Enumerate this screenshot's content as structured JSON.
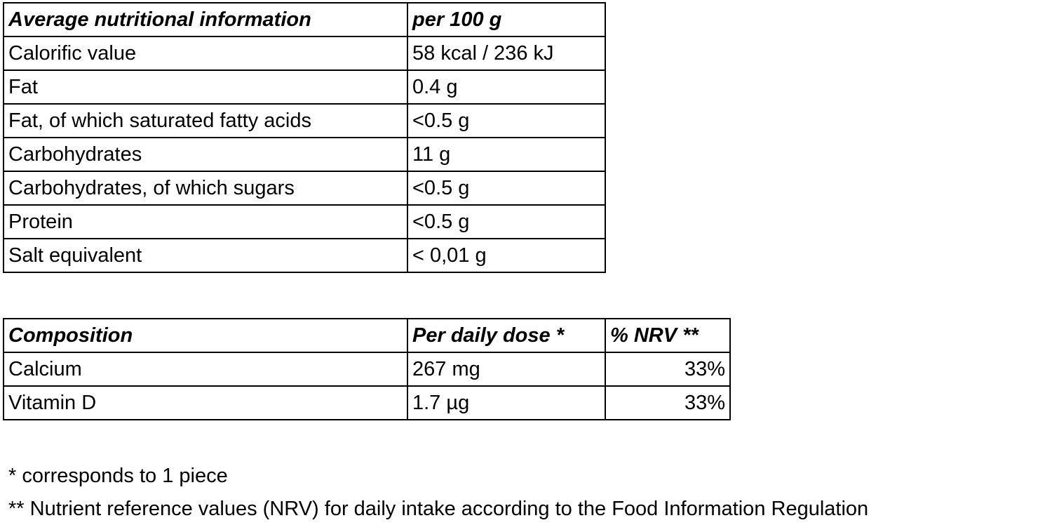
{
  "nutrition_table": {
    "header": [
      "Average nutritional information",
      "per 100 g"
    ],
    "rows": [
      [
        "Calorific value",
        "58 kcal / 236 kJ"
      ],
      [
        "Fat",
        "0.4 g"
      ],
      [
        "Fat, of which saturated fatty acids",
        "<0.5 g"
      ],
      [
        "Carbohydrates",
        "11 g"
      ],
      [
        "Carbohydrates, of which sugars",
        "<0.5 g"
      ],
      [
        "Protein",
        "<0.5 g"
      ],
      [
        "Salt equivalent",
        "< 0,01 g"
      ]
    ]
  },
  "composition_table": {
    "header": [
      "Composition",
      "Per daily dose *",
      "% NRV **"
    ],
    "rows": [
      [
        "Calcium",
        "267 mg",
        "33%"
      ],
      [
        "Vitamin D",
        "1.7 µg",
        "33%"
      ]
    ]
  },
  "footnotes": [
    "* corresponds to 1 piece",
    "** Nutrient reference values (NRV) for daily intake according to the Food Information Regulation"
  ]
}
